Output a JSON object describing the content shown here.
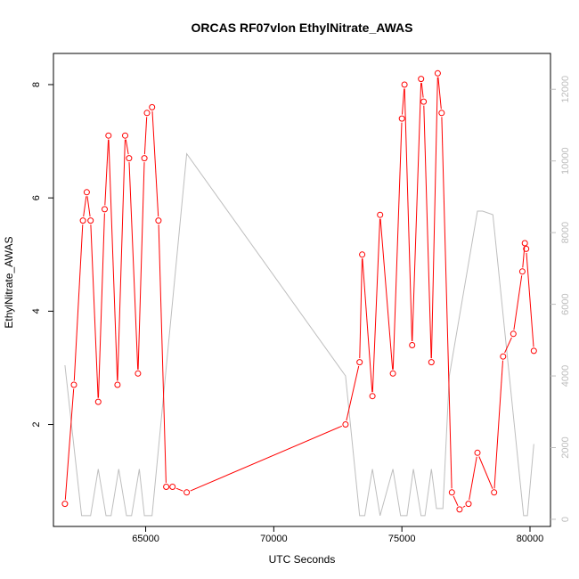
{
  "chart_data": {
    "type": "line",
    "title": "ORCAS RF07vlon EthylNitrate_AWAS",
    "xlabel": "UTC Seconds",
    "ylabel": "EthylNitrate_AWAS",
    "xlim": [
      61400,
      80800
    ],
    "ylim": [
      0.2,
      8.55
    ],
    "y2lim": [
      -200,
      13000
    ],
    "x_ticks": [
      65000,
      70000,
      75000,
      80000
    ],
    "y_ticks": [
      2,
      4,
      6,
      8
    ],
    "y2_ticks": [
      0,
      2000,
      4000,
      6000,
      8000,
      10000,
      12000
    ],
    "grid": false,
    "colors": {
      "primary": "#ff0000",
      "secondary": "#bebebe"
    },
    "series": [
      {
        "axis": "left",
        "marker": "open-circle",
        "x": [
          61850,
          62200,
          62550,
          62700,
          62850,
          63150,
          63400,
          63550,
          63900,
          64200,
          64350,
          64700,
          64950,
          65050,
          65250,
          65500,
          65800,
          66050,
          66600,
          72800,
          73350,
          73450,
          73850,
          74150,
          74650,
          75000,
          75100,
          75400,
          75750,
          75850,
          76150,
          76400,
          76550,
          76950,
          77250,
          77600,
          77950,
          78600,
          78950,
          79350,
          79700,
          79800,
          79850,
          80150
        ],
        "y": [
          0.6,
          2.7,
          5.6,
          6.1,
          5.6,
          2.4,
          5.8,
          7.1,
          2.7,
          7.1,
          6.7,
          2.9,
          6.7,
          7.5,
          7.6,
          5.6,
          0.9,
          0.9,
          0.8,
          2.0,
          3.1,
          5.0,
          2.5,
          5.7,
          2.9,
          7.4,
          8.0,
          3.4,
          8.1,
          7.7,
          3.1,
          8.2,
          7.5,
          0.8,
          0.5,
          0.6,
          1.5,
          0.8,
          3.2,
          3.6,
          4.7,
          5.2,
          5.1,
          3.3
        ]
      },
      {
        "axis": "right",
        "marker": "none",
        "x": [
          61850,
          62500,
          62850,
          63150,
          63450,
          63650,
          63950,
          64250,
          64450,
          64750,
          64950,
          65250,
          66600,
          72800,
          73350,
          73550,
          73850,
          74150,
          74650,
          74950,
          75200,
          75450,
          75750,
          75900,
          76150,
          76350,
          76600,
          76850,
          77950,
          78150,
          78550,
          79750,
          79900,
          80150
        ],
        "y": [
          4300,
          100,
          100,
          1400,
          100,
          100,
          1400,
          100,
          100,
          1400,
          100,
          100,
          10200,
          4000,
          100,
          100,
          1400,
          100,
          1400,
          100,
          100,
          1400,
          100,
          100,
          1400,
          300,
          300,
          4000,
          8600,
          8600,
          8500,
          100,
          100,
          2100
        ]
      }
    ]
  }
}
